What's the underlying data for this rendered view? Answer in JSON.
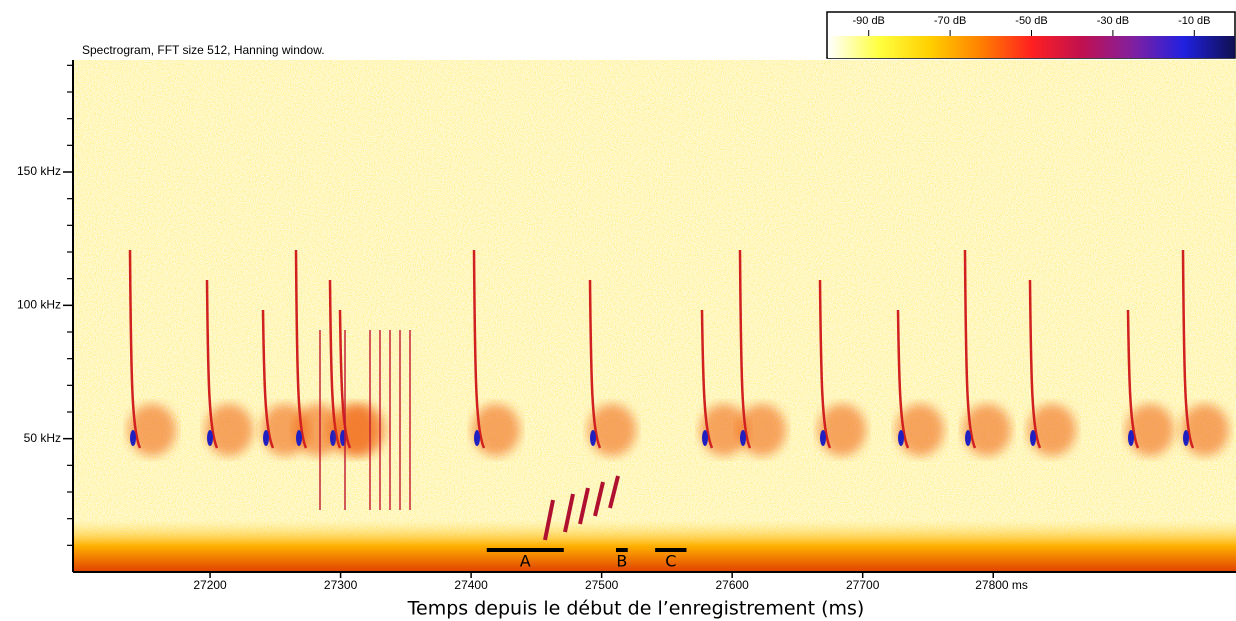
{
  "chart_data": {
    "type": "spectrogram",
    "title": "Spectrogram, FFT size 512, Hanning window.",
    "xlabel": "Temps depuis le début de l’enregistrement (ms)",
    "xlim": [
      27095,
      27986
    ],
    "xticks": [
      27200,
      27300,
      27400,
      27500,
      27600,
      27700,
      {
        "value": 27800,
        "label": "27800 ms"
      }
    ],
    "ylim": [
      0,
      192
    ],
    "yticks": [
      {
        "value": 50,
        "label": "50 kHz"
      },
      {
        "value": 100,
        "label": "100 kHz"
      },
      {
        "value": 150,
        "label": "150 kHz"
      }
    ],
    "yticks_minor": [
      10,
      20,
      30,
      40,
      60,
      70,
      80,
      90,
      110,
      120,
      130,
      140,
      160,
      170,
      180,
      190
    ],
    "colorbar": {
      "lim": [
        -100,
        0
      ],
      "ticks": [
        {
          "value": -90,
          "label": "-90 dB"
        },
        {
          "value": -70,
          "label": "-70 dB"
        },
        {
          "value": -50,
          "label": "-50 dB"
        },
        {
          "value": -30,
          "label": "-30 dB"
        },
        {
          "value": -10,
          "label": "-10 dB"
        }
      ],
      "colors": [
        "#ffffff",
        "#ffff40",
        "#ffd000",
        "#ff8000",
        "#ff2020",
        "#c01050",
        "#8020a0",
        "#2020e0",
        "#101050"
      ]
    },
    "annotations": [
      {
        "label": "A",
        "x": [
          27412,
          27471
        ]
      },
      {
        "label": "B",
        "x": [
          27511,
          27520
        ]
      },
      {
        "label": "C",
        "x": [
          27541,
          27565
        ]
      }
    ]
  }
}
